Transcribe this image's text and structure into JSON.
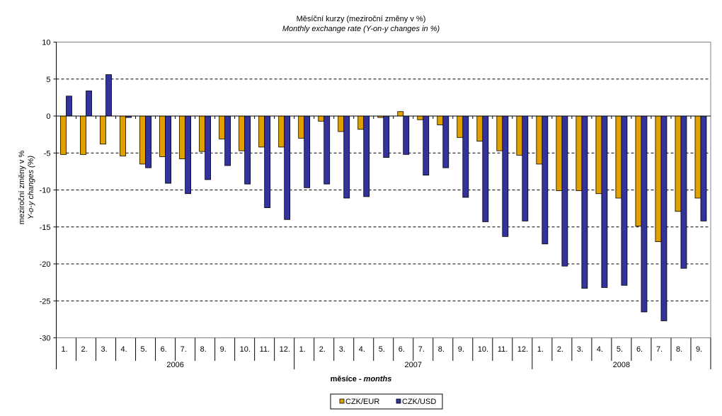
{
  "chart_data": {
    "type": "bar",
    "title": "Měsíční kurzy (meziroční změny v %)",
    "subtitle": "Monthly exchange rate (Y-on-y changes in %)",
    "ylabel": "meziroční změny v %",
    "ylabel_en": "Y-o-y changes (%)",
    "xlabel": "měsíce",
    "xlabel_en": "months",
    "xlabel_sep": " - ",
    "ylim": [
      -30,
      10
    ],
    "yticks": [
      10,
      5,
      0,
      -5,
      -10,
      -15,
      -20,
      -25,
      -30
    ],
    "grid": true,
    "legend": "bottom",
    "years": [
      {
        "label": "2006",
        "months": 12
      },
      {
        "label": "2007",
        "months": 12
      },
      {
        "label": "2008",
        "months": 9
      }
    ],
    "categories": [
      "1.",
      "2.",
      "3.",
      "4.",
      "5.",
      "6.",
      "7.",
      "8.",
      "9.",
      "10.",
      "11.",
      "12.",
      "1.",
      "2.",
      "3.",
      "4.",
      "5.",
      "6.",
      "7.",
      "8.",
      "9.",
      "10.",
      "11.",
      "12.",
      "1.",
      "2.",
      "3.",
      "4.",
      "5.",
      "6.",
      "7.",
      "8.",
      "9."
    ],
    "series": [
      {
        "name": "CZK/EUR",
        "color": "#E0A000",
        "values": [
          -5.2,
          -5.2,
          -3.8,
          -5.4,
          -6.5,
          -5.5,
          -5.8,
          -4.8,
          -3.1,
          -4.7,
          -4.2,
          -4.2,
          -3.0,
          -0.7,
          -2.1,
          -1.8,
          -0.2,
          0.6,
          -0.5,
          -1.2,
          -2.9,
          -3.4,
          -4.7,
          -5.3,
          -6.5,
          -10.1,
          -10.1,
          -10.5,
          -11.1,
          -14.9,
          -17.0,
          -12.9,
          -11.1
        ]
      },
      {
        "name": "CZK/USD",
        "color": "#333399",
        "values": [
          2.7,
          3.4,
          5.6,
          -0.2,
          -7.0,
          -9.1,
          -10.5,
          -8.6,
          -6.7,
          -9.2,
          -12.4,
          -14.0,
          -9.7,
          -9.2,
          -11.1,
          -10.9,
          -5.6,
          -5.2,
          -8.0,
          -7.0,
          -11.0,
          -14.3,
          -16.3,
          -14.2,
          -17.3,
          -20.3,
          -23.3,
          -23.2,
          -22.9,
          -26.5,
          -27.7,
          -20.6,
          -14.2
        ]
      }
    ]
  }
}
